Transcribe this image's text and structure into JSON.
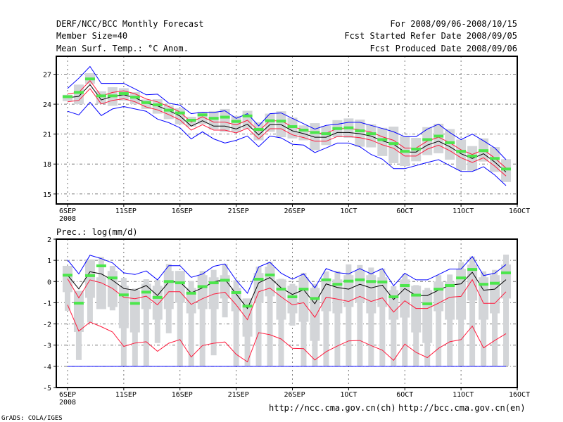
{
  "header": {
    "title": "DERF/NCC/BCC Monthly Forecast",
    "member_size": "Member Size=40",
    "variable": "Mean Surf. Temp.: °C Anom.",
    "period": "For 2008/09/06-2008/10/15",
    "started": "Fcst Started Refer Date 2008/09/05",
    "produced": "Fcst Produced Date 2008/09/06"
  },
  "footer": {
    "url_ch": "http://ncc.cma.gov.cn(ch)",
    "url_en": "http://bcc.cma.gov.cn(en)",
    "credit": "GrADS: COLA/IGES"
  },
  "colors": {
    "max_min": "#0000ff",
    "spread": "#ff1a3c",
    "mean": "#000000",
    "member": "#4ce64c",
    "box": "#d3d5d8"
  },
  "chart_data": [
    {
      "type": "line",
      "title": "Mean Surf. Temp.: °C Anom.",
      "xlabel": "",
      "ylabel": "",
      "x_ticks": [
        0,
        5,
        10,
        15,
        20,
        25,
        30,
        35,
        40
      ],
      "x_tick_labels": [
        "6SEP",
        "11SEP",
        "16SEP",
        "21SEP",
        "26SEP",
        "1OCT",
        "6OCT",
        "11OCT",
        "16OCT"
      ],
      "x_sublabel": "2008",
      "xlim": [
        -1,
        40
      ],
      "y_ticks": [
        15,
        18,
        21,
        24,
        27
      ],
      "y_tick_labels": [
        "15",
        "18",
        "21",
        "24",
        "27"
      ],
      "ylim": [
        14,
        28.8
      ],
      "grid": true,
      "series": [
        {
          "name": "max",
          "color": "blue",
          "values": [
            25.58,
            26.6,
            27.78,
            26.08,
            26.08,
            26.08,
            25.53,
            24.94,
            25.0,
            24.1,
            23.9,
            23.05,
            23.2,
            23.17,
            23.34,
            22.58,
            23.05,
            21.82,
            23.05,
            23.12,
            22.58,
            22.04,
            21.5,
            21.87,
            21.99,
            22.18,
            22.18,
            21.87,
            21.56,
            21.23,
            20.74,
            20.74,
            21.5,
            21.99,
            21.16,
            20.45,
            21.0,
            20.33,
            19.62,
            18.44
          ]
        },
        {
          "name": "min",
          "color": "blue",
          "values": [
            23.29,
            22.93,
            24.19,
            22.86,
            23.52,
            23.76,
            23.52,
            23.29,
            22.51,
            22.15,
            21.63,
            20.52,
            21.23,
            20.52,
            20.1,
            20.38,
            20.81,
            19.74,
            20.81,
            20.62,
            19.98,
            19.9,
            19.15,
            19.62,
            20.1,
            20.1,
            19.74,
            18.96,
            18.49,
            17.54,
            17.54,
            17.85,
            18.16,
            18.44,
            17.85,
            17.26,
            17.26,
            17.73,
            16.9,
            15.84
          ]
        },
        {
          "name": "upper",
          "color": "red",
          "values": [
            25.04,
            25.18,
            26.36,
            24.82,
            25.18,
            25.34,
            25.04,
            24.52,
            24.23,
            23.76,
            23.22,
            22.2,
            22.74,
            22.2,
            22.2,
            21.92,
            22.39,
            21.32,
            22.34,
            22.34,
            21.73,
            21.45,
            21.09,
            21.09,
            21.56,
            21.56,
            21.44,
            21.2,
            20.73,
            20.38,
            19.6,
            19.6,
            20.3,
            20.69,
            20.14,
            19.43,
            18.96,
            19.43,
            18.6,
            17.6
          ]
        },
        {
          "name": "lower",
          "color": "red",
          "values": [
            24.24,
            24.38,
            25.56,
            24.02,
            24.38,
            24.54,
            24.24,
            23.72,
            23.43,
            22.96,
            22.42,
            21.4,
            21.94,
            21.4,
            21.4,
            21.12,
            21.59,
            20.52,
            21.54,
            21.54,
            20.93,
            20.65,
            20.29,
            20.29,
            20.76,
            20.76,
            20.64,
            20.4,
            19.93,
            19.58,
            18.8,
            18.8,
            19.5,
            19.89,
            19.34,
            18.63,
            18.16,
            18.63,
            17.8,
            16.8
          ]
        },
        {
          "name": "mean",
          "color": "black",
          "values": [
            24.64,
            24.78,
            25.96,
            24.42,
            24.78,
            24.94,
            24.64,
            24.12,
            23.83,
            23.36,
            22.82,
            21.8,
            22.34,
            21.8,
            21.8,
            21.52,
            21.99,
            20.92,
            21.94,
            21.94,
            21.33,
            21.05,
            20.69,
            20.69,
            21.16,
            21.16,
            21.04,
            20.8,
            20.33,
            19.98,
            19.2,
            19.2,
            19.9,
            20.29,
            19.74,
            19.03,
            18.56,
            19.03,
            18.2,
            17.2
          ]
        }
      ],
      "markers": [
        24.75,
        25.18,
        26.53,
        24.83,
        24.83,
        25.06,
        24.7,
        24.16,
        23.93,
        23.4,
        23.12,
        22.39,
        22.93,
        22.58,
        22.7,
        22.27,
        22.82,
        21.47,
        22.34,
        22.3,
        21.75,
        21.4,
        21.16,
        21.04,
        21.56,
        21.63,
        21.33,
        21.04,
        20.45,
        20.05,
        19.27,
        19.5,
        20.45,
        20.8,
        20.14,
        19.27,
        18.8,
        19.34,
        18.56,
        17.5
      ],
      "boxes": [
        [
          24.94,
          24.3
        ],
        [
          25.96,
          24.0
        ],
        [
          27.1,
          26.05
        ],
        [
          25.3,
          24.05
        ],
        [
          25.7,
          23.83
        ],
        [
          25.6,
          24.35
        ],
        [
          25.2,
          24.0
        ],
        [
          24.47,
          23.52
        ],
        [
          24.5,
          23.05
        ],
        [
          23.88,
          22.5
        ],
        [
          23.6,
          21.99
        ],
        [
          22.74,
          21.75
        ],
        [
          23.24,
          21.99
        ],
        [
          23.29,
          21.47
        ],
        [
          23.52,
          21.23
        ],
        [
          22.82,
          21.2
        ],
        [
          23.34,
          21.52
        ],
        [
          22.18,
          20.38
        ],
        [
          23.05,
          21.23
        ],
        [
          23.29,
          20.69
        ],
        [
          22.65,
          20.57
        ],
        [
          21.87,
          20.38
        ],
        [
          22.1,
          19.4
        ],
        [
          21.82,
          19.9
        ],
        [
          22.4,
          20.69
        ],
        [
          22.57,
          20.62
        ],
        [
          22.46,
          19.74
        ],
        [
          21.99,
          19.67
        ],
        [
          21.63,
          18.8
        ],
        [
          21.75,
          18.09
        ],
        [
          20.8,
          17.8
        ],
        [
          20.62,
          18.28
        ],
        [
          21.7,
          18.9
        ],
        [
          22.04,
          19.08
        ],
        [
          21.5,
          18.44
        ],
        [
          20.45,
          17.38
        ],
        [
          19.8,
          17.33
        ],
        [
          20.57,
          18.25
        ],
        [
          19.7,
          17.21
        ],
        [
          18.49,
          16.2
        ]
      ]
    },
    {
      "type": "line",
      "title": "Prec.: log(mm/d)",
      "xlabel": "",
      "ylabel": "",
      "x_ticks": [
        0,
        5,
        10,
        15,
        20,
        25,
        30,
        35,
        40
      ],
      "x_tick_labels": [
        "6SEP",
        "11SEP",
        "16SEP",
        "21SEP",
        "26SEP",
        "1OCT",
        "6OCT",
        "11OCT",
        "16OCT"
      ],
      "x_sublabel": "2008",
      "xlim": [
        -1,
        40
      ],
      "y_ticks": [
        -5,
        -4,
        -3,
        -2,
        -1,
        0,
        1,
        2
      ],
      "y_tick_labels": [
        "-5",
        "-4",
        "-3",
        "-2",
        "-1",
        "0",
        "1",
        "2"
      ],
      "ylim": [
        -5,
        2
      ],
      "grid": true,
      "series": [
        {
          "name": "max",
          "color": "blue",
          "values": [
            1.02,
            0.36,
            1.24,
            1.08,
            0.88,
            0.41,
            0.33,
            0.5,
            0.08,
            0.75,
            0.75,
            0.2,
            0.35,
            0.72,
            0.83,
            0.06,
            -0.55,
            0.69,
            0.91,
            0.39,
            0.11,
            0.36,
            -0.3,
            0.61,
            0.42,
            0.36,
            0.61,
            0.36,
            0.61,
            -0.2,
            0.39,
            0.08,
            0.08,
            0.33,
            0.59,
            0.59,
            1.18,
            0.28,
            0.39,
            0.8
          ]
        },
        {
          "name": "min",
          "color": "blue",
          "values": [
            -4,
            -4,
            -4,
            -4,
            -4,
            -4,
            -4,
            -4,
            -4,
            -4,
            -4,
            -4,
            -4,
            -4,
            -4,
            -4,
            -4,
            -4,
            -4,
            -4,
            -4,
            -4,
            -4,
            -4,
            -4,
            -4,
            -4,
            -4,
            -4,
            -4,
            -4,
            -4,
            -4,
            -4,
            -4,
            -4,
            -4,
            -4,
            -4,
            -4
          ]
        },
        {
          "name": "upper",
          "color": "red",
          "values": [
            0.13,
            -0.77,
            0.08,
            -0.06,
            -0.33,
            -0.74,
            -0.81,
            -0.69,
            -1.1,
            -0.48,
            -0.48,
            -1.08,
            -0.81,
            -0.59,
            -0.5,
            -1.1,
            -1.8,
            -0.48,
            -0.31,
            -0.72,
            -1.1,
            -1.0,
            -1.69,
            -0.74,
            -0.83,
            -0.94,
            -0.7,
            -0.94,
            -0.77,
            -1.44,
            -0.91,
            -1.27,
            -1.27,
            -1.02,
            -0.74,
            -0.7,
            0.09,
            -1.03,
            -1.03,
            -0.48
          ]
        },
        {
          "name": "lower",
          "color": "red",
          "values": [
            -1.1,
            -2.34,
            -1.91,
            -2.13,
            -2.38,
            -3.06,
            -2.9,
            -2.84,
            -3.29,
            -2.91,
            -2.74,
            -3.56,
            -3.02,
            -2.91,
            -2.85,
            -3.43,
            -3.79,
            -2.41,
            -2.51,
            -2.71,
            -3.15,
            -3.17,
            -3.7,
            -3.31,
            -3.04,
            -2.8,
            -2.78,
            -3.02,
            -3.24,
            -3.72,
            -2.95,
            -3.34,
            -3.59,
            -3.15,
            -2.84,
            -2.74,
            -2.1,
            -3.13,
            -2.78,
            -2.46
          ]
        },
        {
          "name": "mean",
          "color": "black",
          "values": [
            0.3,
            -0.35,
            0.46,
            0.36,
            0.06,
            -0.33,
            -0.41,
            -0.19,
            -0.66,
            -0.02,
            -0.02,
            -0.53,
            -0.3,
            -0.02,
            0.11,
            -0.59,
            -1.27,
            -0.06,
            0.19,
            -0.3,
            -0.61,
            -0.39,
            -1.05,
            -0.11,
            -0.28,
            -0.36,
            -0.13,
            -0.3,
            -0.17,
            -0.85,
            -0.33,
            -0.66,
            -0.66,
            -0.41,
            -0.17,
            -0.11,
            0.44,
            -0.41,
            -0.36,
            0.09
          ]
        }
      ],
      "markers": [
        0.3,
        -1.02,
        0.28,
        0.74,
        0.17,
        -0.63,
        -1.03,
        -0.5,
        -0.75,
        0,
        -0.06,
        -0.55,
        -0.24,
        -0.06,
        0.06,
        -0.52,
        -1.16,
        0.11,
        0.31,
        -0.36,
        -0.72,
        -0.36,
        -0.8,
        0.08,
        -0.13,
        0.02,
        0.08,
        0,
        -0.02,
        -0.72,
        -0.19,
        -0.64,
        -1.05,
        -0.36,
        -0.19,
        0.17,
        0.57,
        -0.13,
        -0.08,
        0.41
      ],
      "boxes": [
        [
          0.74,
          0.74,
          -0.5,
          -1.38
        ],
        [
          -0.44,
          -0.44,
          -2.38,
          -3.7
        ],
        [
          1.04,
          1.04,
          -0.77,
          -1.93
        ],
        [
          1.16,
          0.2,
          -1.3,
          -1.3
        ],
        [
          0.74,
          0.5,
          -1.2,
          -1.36
        ],
        [
          0.17,
          -0.2,
          -2.2,
          -3.98
        ],
        [
          -0.33,
          -0.4,
          -2.4,
          -3.98
        ],
        [
          0.11,
          -0.1,
          -1.3,
          -3.98
        ],
        [
          0.08,
          -0.2,
          -1.8,
          -2.9
        ],
        [
          0.83,
          0.5,
          -1.3,
          -2.44
        ],
        [
          0.5,
          0.5,
          -1.0,
          -3.98
        ],
        [
          0.03,
          -0.3,
          -1.5,
          -3.98
        ],
        [
          0.5,
          0.3,
          -1.3,
          -3.98
        ],
        [
          0.55,
          0.2,
          -1.3,
          -3.48
        ],
        [
          0.83,
          0.3,
          -0.8,
          -1.69
        ],
        [
          0.06,
          -0.3,
          -1.4,
          -3.98
        ],
        [
          -0.8,
          -0.8,
          -2.6,
          -3.98
        ],
        [
          0.7,
          0.4,
          -1.0,
          -3.98
        ],
        [
          0.92,
          0.7,
          -0.7,
          -3.98
        ],
        [
          0.13,
          0.1,
          -1.8,
          -3.98
        ],
        [
          -0.11,
          -0.2,
          -1.5,
          -2.08
        ],
        [
          0.41,
          0.2,
          -1.9,
          -3.98
        ],
        [
          -0.11,
          -0.3,
          -2.8,
          -3.98
        ],
        [
          0.48,
          0.1,
          -1.4,
          -3.98
        ],
        [
          0.5,
          0.1,
          -1.5,
          -3.98
        ],
        [
          0.81,
          0.3,
          -1.2,
          -3.98
        ],
        [
          0.78,
          0.5,
          -1.0,
          -3.98
        ],
        [
          0.66,
          0.3,
          -1.5,
          -3.98
        ],
        [
          0.61,
          0.2,
          -1.2,
          -3.98
        ],
        [
          -0.22,
          -0.4,
          -1.8,
          -3.98
        ],
        [
          0.36,
          0.1,
          -1.7,
          -3.98
        ],
        [
          -0.17,
          -0.2,
          -2.4,
          -3.98
        ],
        [
          -0.3,
          -0.4,
          -2.9,
          -3.98
        ],
        [
          0.3,
          0.0,
          -1.4,
          -3.98
        ],
        [
          0.33,
          0.0,
          -1.8,
          -3.98
        ],
        [
          0.91,
          0.6,
          -1.8,
          -3.98
        ],
        [
          1.18,
          0.8,
          -0.9,
          -3.98
        ],
        [
          0.48,
          0.2,
          -1.8,
          -3.98
        ],
        [
          0.55,
          0.3,
          -1.5,
          -3.98
        ],
        [
          1.27,
          0.8,
          -0.8,
          -3.98
        ]
      ]
    }
  ]
}
